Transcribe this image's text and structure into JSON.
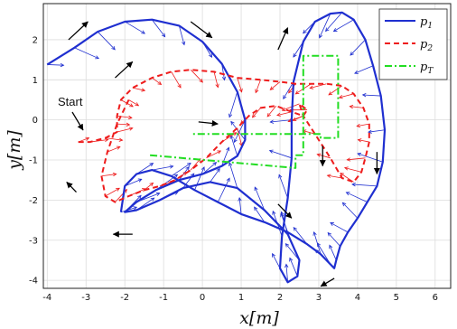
{
  "chart_data": {
    "type": "line",
    "title": "",
    "xlabel": "x[m]",
    "ylabel": "y[m]",
    "xlim": [
      -4.1,
      6.4
    ],
    "ylim": [
      -4.2,
      2.9
    ],
    "xticks": [
      -4,
      -3,
      -2,
      -1,
      0,
      1,
      2,
      3,
      4,
      5,
      6
    ],
    "yticks": [
      -4,
      -3,
      -2,
      -1,
      0,
      1,
      2
    ],
    "grid": true,
    "legend_position": "top-right",
    "colors": {
      "p1": "#1f2fd0",
      "p2": "#ee1c1c",
      "pT": "#22dd22",
      "arrows": "#000000"
    },
    "series": [
      {
        "name": "p_1",
        "legend_main": "p",
        "legend_sub": "1",
        "style": "solid",
        "x": [
          -4.0,
          -3.3,
          -2.7,
          -2.0,
          -1.3,
          -0.6,
          0.0,
          0.5,
          0.9,
          1.1,
          1.1,
          0.9,
          0.5,
          0.0,
          -0.6,
          -1.2,
          -1.7,
          -2.0,
          -1.7,
          -1.1,
          -0.5,
          0.2,
          0.9,
          1.6,
          2.2,
          2.5,
          2.45,
          2.2,
          2.0,
          2.05,
          2.2,
          2.3,
          2.3,
          2.35,
          2.6,
          2.9,
          3.3,
          3.6,
          3.9,
          4.2,
          4.4,
          4.6,
          4.7,
          4.65,
          4.5,
          4.25,
          4.0,
          3.75,
          3.55,
          3.45,
          3.4,
          3.3,
          3.05,
          2.7,
          2.2,
          1.6,
          1.0,
          0.4,
          -0.2,
          -0.8,
          -1.3,
          -1.7,
          -2.0,
          -2.1
        ],
        "y": [
          1.38,
          1.8,
          2.2,
          2.45,
          2.5,
          2.35,
          1.95,
          1.4,
          0.7,
          0.0,
          -0.5,
          -0.9,
          -1.15,
          -1.35,
          -1.5,
          -1.75,
          -2.05,
          -2.3,
          -2.25,
          -2.0,
          -1.7,
          -1.55,
          -1.7,
          -2.25,
          -2.85,
          -3.5,
          -3.9,
          -4.05,
          -3.7,
          -2.9,
          -1.95,
          -0.95,
          0.0,
          0.95,
          1.95,
          2.45,
          2.65,
          2.68,
          2.5,
          2.0,
          1.35,
          0.6,
          -0.25,
          -1.05,
          -1.65,
          -2.05,
          -2.45,
          -2.8,
          -3.15,
          -3.5,
          -3.7,
          -3.6,
          -3.35,
          -3.1,
          -2.8,
          -2.55,
          -2.35,
          -2.05,
          -1.75,
          -1.4,
          -1.25,
          -1.35,
          -1.65,
          -2.3
        ]
      },
      {
        "name": "p_2",
        "legend_main": "p",
        "legend_sub": "2",
        "style": "dashed",
        "x": [
          -3.2,
          -2.9,
          -2.5,
          -2.2,
          -2.2,
          -2.1,
          -1.8,
          -1.3,
          -0.8,
          -0.3,
          0.3,
          0.9,
          1.5,
          2.0,
          2.4,
          2.8,
          3.2,
          3.6,
          3.9,
          4.15,
          4.3,
          4.3,
          4.2,
          4.1,
          3.9,
          3.6,
          3.3,
          2.9,
          2.6,
          2.5,
          2.7,
          2.6,
          2.3,
          1.9,
          1.5,
          1.2,
          0.9,
          0.5,
          0.1,
          -0.3,
          -0.7,
          -1.1,
          -1.5,
          -1.9,
          -2.25,
          -2.5,
          -2.6,
          -2.45,
          -2.2,
          -1.9
        ],
        "y": [
          -0.55,
          -0.55,
          -0.45,
          -0.3,
          0.1,
          0.5,
          0.8,
          1.05,
          1.2,
          1.25,
          1.2,
          1.05,
          1.0,
          0.95,
          0.9,
          0.9,
          0.9,
          0.85,
          0.65,
          0.3,
          -0.1,
          -0.55,
          -0.95,
          -1.3,
          -1.55,
          -1.45,
          -0.95,
          -0.35,
          0.1,
          0.4,
          0.25,
          0.1,
          0.2,
          0.35,
          0.3,
          0.1,
          -0.2,
          -0.55,
          -0.95,
          -1.25,
          -1.5,
          -1.65,
          -1.75,
          -1.9,
          -2.05,
          -1.9,
          -1.4,
          -0.8,
          -0.1,
          0.5
        ]
      },
      {
        "name": "p_T",
        "legend_main": "p",
        "legend_sub": "T",
        "style": "dashdot",
        "x": [
          -1.35,
          2.4,
          2.4,
          2.6,
          2.6,
          3.5,
          3.5,
          3.05,
          3.05,
          -0.3
        ],
        "y": [
          -0.88,
          -1.2,
          -0.88,
          -0.88,
          1.6,
          1.6,
          -0.45,
          -0.45,
          -0.35,
          -0.35
        ]
      }
    ],
    "annotations": [
      {
        "text": "Start",
        "x": -3.7,
        "y": 0.55
      }
    ]
  }
}
